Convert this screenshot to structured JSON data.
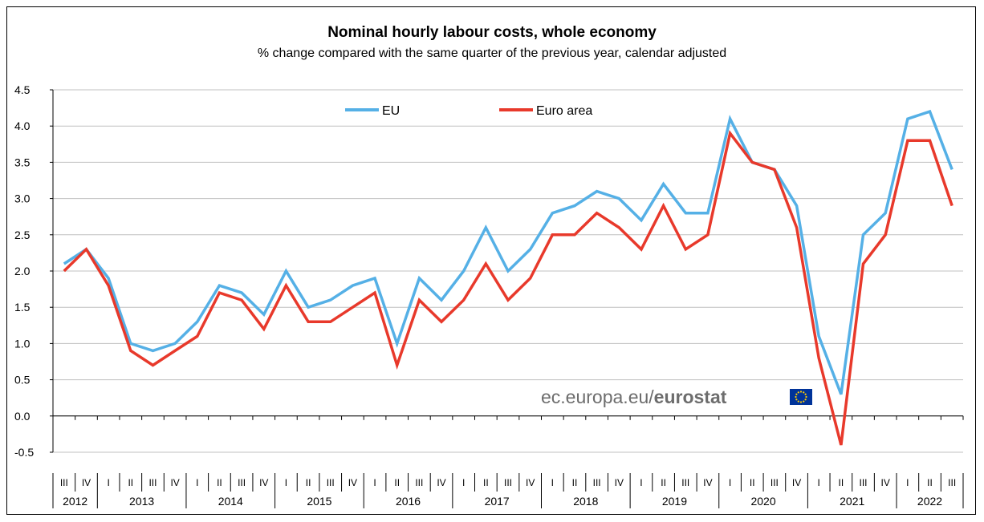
{
  "chart_data": {
    "type": "line",
    "title": "Nominal hourly labour costs, whole economy",
    "subtitle": "% change compared with the same quarter of the previous  year, calendar adjusted",
    "ylim": [
      -0.5,
      4.5
    ],
    "yticks": [
      "4.5",
      "4.0",
      "3.5",
      "3.0",
      "2.5",
      "2.0",
      "1.5",
      "1.0",
      "0.5",
      "0.0",
      "-0.5"
    ],
    "ytick_values": [
      4.5,
      4.0,
      3.5,
      3.0,
      2.5,
      2.0,
      1.5,
      1.0,
      0.5,
      0.0,
      -0.5
    ],
    "grid": true,
    "legend_position": "top-center",
    "quarters": [
      "III",
      "IV",
      "I",
      "II",
      "III",
      "IV",
      "I",
      "II",
      "III",
      "IV",
      "I",
      "II",
      "III",
      "IV",
      "I",
      "II",
      "III",
      "IV",
      "I",
      "II",
      "III",
      "IV",
      "I",
      "II",
      "III",
      "IV",
      "I",
      "II",
      "III",
      "IV",
      "I",
      "II",
      "III",
      "IV",
      "I",
      "II",
      "III",
      "IV",
      "I",
      "II",
      "III"
    ],
    "years": [
      {
        "label": "2012",
        "quarters": 2
      },
      {
        "label": "2013",
        "quarters": 4
      },
      {
        "label": "2014",
        "quarters": 4
      },
      {
        "label": "2015",
        "quarters": 4
      },
      {
        "label": "2016",
        "quarters": 4
      },
      {
        "label": "2017",
        "quarters": 4
      },
      {
        "label": "2018",
        "quarters": 4
      },
      {
        "label": "2019",
        "quarters": 4
      },
      {
        "label": "2020",
        "quarters": 4
      },
      {
        "label": "2021",
        "quarters": 4
      },
      {
        "label": "2022",
        "quarters": 3
      }
    ],
    "series": [
      {
        "name": "EU",
        "color": "#55b0e6",
        "values": [
          2.1,
          2.3,
          1.9,
          1.0,
          0.9,
          1.0,
          1.3,
          1.8,
          1.7,
          1.4,
          2.0,
          1.5,
          1.6,
          1.8,
          1.9,
          1.0,
          1.9,
          1.6,
          2.0,
          2.6,
          2.0,
          2.3,
          2.8,
          2.9,
          3.1,
          3.0,
          2.7,
          3.2,
          2.8,
          2.8,
          4.1,
          3.5,
          3.4,
          2.9,
          1.1,
          0.3,
          2.5,
          2.8,
          4.1,
          4.2,
          3.4
        ]
      },
      {
        "name": "Euro area",
        "color": "#e8392b",
        "values": [
          2.0,
          2.3,
          1.8,
          0.9,
          0.7,
          0.9,
          1.1,
          1.7,
          1.6,
          1.2,
          1.8,
          1.3,
          1.3,
          1.5,
          1.7,
          0.7,
          1.6,
          1.3,
          1.6,
          2.1,
          1.6,
          1.9,
          2.5,
          2.5,
          2.8,
          2.6,
          2.3,
          2.9,
          2.3,
          2.5,
          3.9,
          3.5,
          3.4,
          2.6,
          0.8,
          -0.4,
          2.1,
          2.5,
          3.8,
          3.8,
          2.9
        ]
      }
    ]
  },
  "watermark": {
    "prefix": "ec.europa.eu/",
    "brand": "eurostat",
    "flag_color": "#003399",
    "star_color": "#ffcc00"
  }
}
